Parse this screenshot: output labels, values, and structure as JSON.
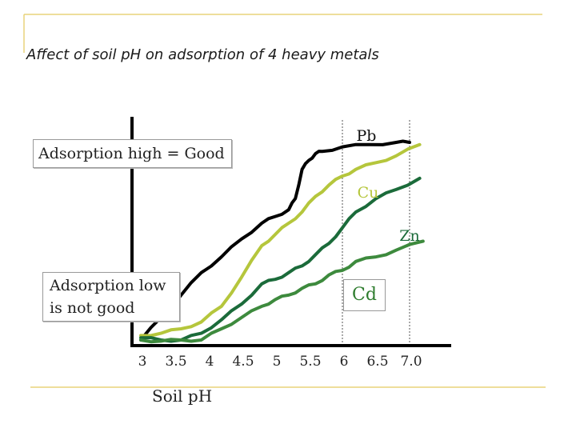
{
  "chart_data": {
    "type": "line",
    "title": "Affect of soil pH on adsorption of 4 heavy metals",
    "xlabel": "Soil pH",
    "ylabel": "",
    "xlim": [
      3,
      7.0
    ],
    "x_ticks": [
      "3",
      "3.5",
      "4",
      "4.5",
      "5",
      "5.5",
      "6",
      "6.5",
      "7.0"
    ],
    "grid": false,
    "reference_lines_x": [
      6,
      7.0
    ],
    "series": [
      {
        "name": "Pb",
        "color": "#000000",
        "x": [
          3.0,
          3.3,
          3.6,
          3.9,
          4.2,
          4.5,
          4.8,
          5.0,
          5.2,
          5.3,
          5.4,
          5.5,
          5.6,
          5.7,
          6.0,
          6.4,
          6.8,
          7.0
        ],
        "y": [
          0.0,
          0.1,
          0.2,
          0.3,
          0.37,
          0.45,
          0.52,
          0.55,
          0.58,
          0.63,
          0.76,
          0.8,
          0.83,
          0.84,
          0.86,
          0.87,
          0.88,
          0.88
        ]
      },
      {
        "name": "Cu",
        "color": "#b5c63c",
        "x": [
          3.0,
          3.3,
          3.6,
          3.9,
          4.2,
          4.5,
          4.8,
          5.0,
          5.2,
          5.4,
          5.6,
          5.8,
          6.0,
          6.2,
          6.5,
          6.8,
          7.15
        ],
        "y": [
          0.02,
          0.03,
          0.05,
          0.08,
          0.15,
          0.28,
          0.42,
          0.47,
          0.52,
          0.57,
          0.64,
          0.69,
          0.73,
          0.76,
          0.79,
          0.82,
          0.87
        ]
      },
      {
        "name": "Zn",
        "color": "#1b6b3a",
        "x": [
          3.0,
          3.3,
          3.6,
          3.9,
          4.2,
          4.5,
          4.8,
          5.0,
          5.2,
          5.4,
          5.6,
          5.8,
          6.0,
          6.2,
          6.5,
          6.8,
          7.15
        ],
        "y": [
          0.01,
          0.0,
          0.0,
          0.03,
          0.09,
          0.16,
          0.25,
          0.27,
          0.3,
          0.33,
          0.38,
          0.43,
          0.5,
          0.57,
          0.63,
          0.67,
          0.72
        ]
      },
      {
        "name": "Cd",
        "color": "#3d8a3d",
        "x": [
          3.0,
          3.3,
          3.6,
          3.9,
          4.2,
          4.5,
          4.8,
          5.0,
          5.2,
          5.4,
          5.6,
          5.8,
          6.0,
          6.2,
          6.5,
          6.8,
          7.2
        ],
        "y": [
          0.0,
          -0.005,
          0.0,
          0.0,
          0.05,
          0.1,
          0.15,
          0.18,
          0.2,
          0.23,
          0.25,
          0.29,
          0.31,
          0.35,
          0.37,
          0.4,
          0.44
        ]
      }
    ],
    "annotations": {
      "high": "Adsorption high = Good",
      "low": "Adsorption low is not good"
    }
  }
}
